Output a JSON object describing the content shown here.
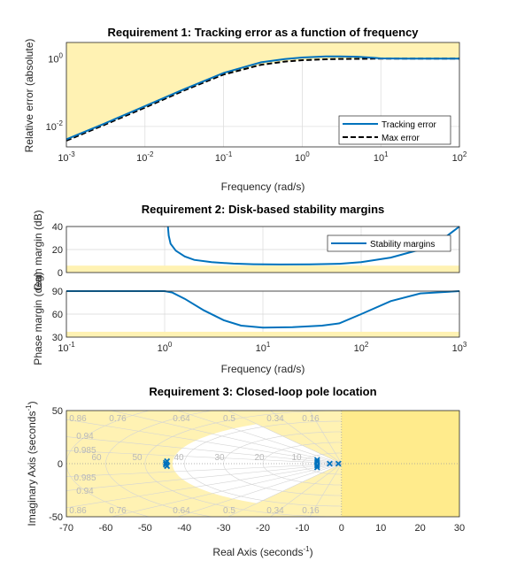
{
  "chart_data": [
    {
      "type": "line",
      "title": "Requirement 1: Tracking error as a function of frequency",
      "xlabel": "Frequency (rad/s)",
      "ylabel": "Relative error (absolute)",
      "xscale": "log",
      "yscale": "log",
      "xlim": [
        0.001,
        100
      ],
      "ylim": [
        0.0025,
        3
      ],
      "xticks": [
        "10^-3",
        "10^-2",
        "10^-1",
        "10^0",
        "10^1",
        "10^2"
      ],
      "yticks": [
        "10^-2",
        "10^0"
      ],
      "grid": true,
      "legend_position": "bottom-right",
      "series": [
        {
          "name": "Tracking error",
          "style": "solid",
          "color": "#0072BD",
          "x": [
            0.001,
            0.003,
            0.01,
            0.03,
            0.1,
            0.3,
            0.6,
            1,
            2,
            3,
            5,
            8,
            10,
            20,
            50,
            100
          ],
          "y": [
            0.0042,
            0.012,
            0.04,
            0.12,
            0.38,
            0.78,
            0.97,
            1.08,
            1.16,
            1.17,
            1.14,
            1.06,
            1.02,
            1.0,
            1.0,
            1.0
          ]
        },
        {
          "name": "Max error",
          "style": "dashed",
          "color": "#000000",
          "x": [
            0.001,
            0.003,
            0.01,
            0.03,
            0.1,
            0.3,
            0.6,
            1,
            2,
            3,
            5,
            8,
            10,
            20,
            50,
            100
          ],
          "y": [
            0.0038,
            0.011,
            0.036,
            0.11,
            0.34,
            0.66,
            0.82,
            0.9,
            0.96,
            0.98,
            0.99,
            1.0,
            1.0,
            1.0,
            1.0,
            1.0
          ]
        }
      ]
    },
    {
      "type": "line",
      "title": "Requirement 2: Disk-based stability margins",
      "xlabel": "Frequency (rad/s)",
      "xscale": "log",
      "xlim": [
        0.1,
        1000
      ],
      "xticks": [
        "10^-1",
        "10^0",
        "10^1",
        "10^2",
        "10^3"
      ],
      "grid": true,
      "legend_position": "top-right",
      "subplots": [
        {
          "ylabel": "Gain margin (dB)",
          "ylim": [
            0,
            40
          ],
          "yticks": [
            0,
            20,
            40
          ],
          "bound": 6,
          "series": [
            {
              "name": "Stability margins",
              "color": "#0072BD",
              "x": [
                1.08,
                1.1,
                1.15,
                1.3,
                1.6,
                2,
                3,
                5,
                8,
                15,
                30,
                60,
                100,
                200,
                400,
                700,
                1000
              ],
              "y": [
                40,
                32,
                25,
                19,
                14,
                11,
                9,
                7.8,
                7.2,
                7.0,
                7.1,
                7.6,
                9,
                13,
                20,
                30,
                40
              ]
            }
          ]
        },
        {
          "ylabel": "Phase margin (deg)",
          "ylim": [
            30,
            90
          ],
          "yticks": [
            30,
            60,
            90
          ],
          "bound": 37,
          "series": [
            {
              "name": "Stability margins",
              "color": "#0072BD",
              "x": [
                0.1,
                1.0,
                1.2,
                1.6,
                2.5,
                4,
                6,
                10,
                20,
                40,
                60,
                100,
                200,
                400,
                1000
              ],
              "y": [
                90,
                90,
                88,
                80,
                65,
                52,
                45,
                42.5,
                43,
                45,
                48,
                60,
                77,
                87,
                90
              ]
            }
          ]
        }
      ]
    },
    {
      "type": "scatter",
      "title": "Requirement 3: Closed-loop pole location",
      "xlabel": "Real Axis (seconds",
      "xlabel_sup": "-1",
      "ylabel": "Imaginary Axis (seconds",
      "ylabel_sup": "-1",
      "xlim": [
        -70,
        30
      ],
      "ylim": [
        -50,
        50
      ],
      "xticks": [
        -70,
        -60,
        -50,
        -40,
        -30,
        -20,
        -10,
        0,
        10,
        20,
        30
      ],
      "yticks": [
        -50,
        0,
        50
      ],
      "grid": "s-plane",
      "damping_labels_top": [
        "0.86",
        "0.76",
        "0.64",
        "0.5",
        "0.34",
        "0.16"
      ],
      "damping_labels_left": [
        "0.94",
        "0.985",
        "0.985",
        "0.94"
      ],
      "damping_labels_bottom": [
        "0.86",
        "0.76",
        "0.64",
        "0.5",
        "0.34",
        "0.16"
      ],
      "frequency_labels": [
        "70",
        "60",
        "50",
        "40",
        "30",
        "20",
        "10"
      ],
      "constraint": {
        "min_decay": 0,
        "min_damping": 0.5,
        "max_frequency": 43
      },
      "series": [
        {
          "marker": "x",
          "color": "#0072BD",
          "points": [
            [
              -44.7,
              0.8
            ],
            [
              -44.7,
              -0.8
            ],
            [
              -44.4,
              2.3
            ],
            [
              -44.4,
              -2.3
            ],
            [
              -6.2,
              1.5
            ],
            [
              -6.2,
              -1.5
            ],
            [
              -6.2,
              3.5
            ],
            [
              -6.2,
              -3.5
            ],
            [
              -3.0,
              0
            ],
            [
              -0.8,
              0
            ]
          ]
        }
      ]
    }
  ]
}
